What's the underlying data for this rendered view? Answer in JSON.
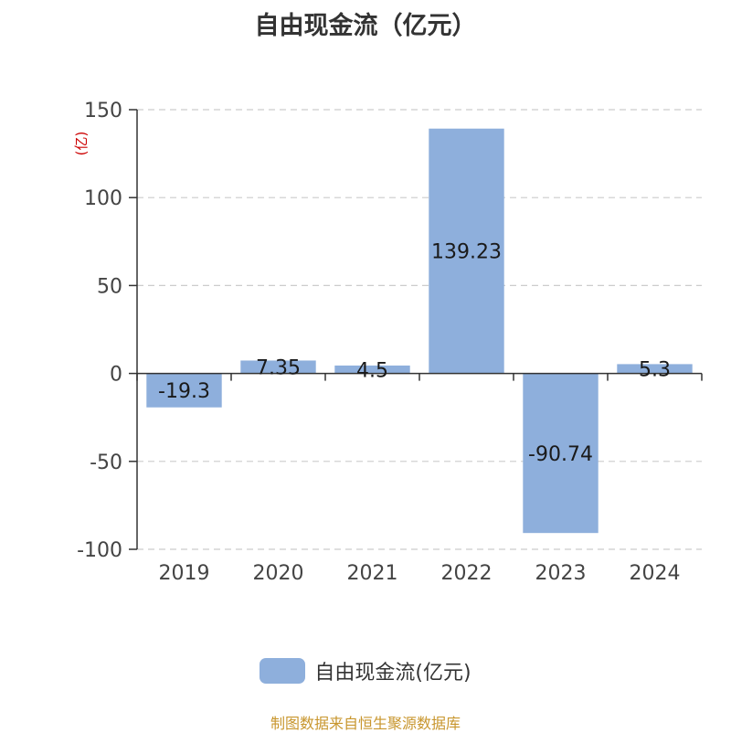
{
  "chart_data": {
    "type": "bar",
    "title": "自由现金流（亿元）",
    "unit_label": "(亿)",
    "categories": [
      "2019",
      "2020",
      "2021",
      "2022",
      "2023",
      "2024"
    ],
    "series": [
      {
        "name": "自由现金流(亿元)",
        "values": [
          -19.3,
          7.35,
          4.5,
          139.23,
          -90.74,
          5.3
        ],
        "data_labels": [
          "-19.3",
          "7.35",
          "4.5",
          "139.23",
          "-90.74",
          "5.3"
        ],
        "color": "#8eafdc"
      }
    ],
    "ylim": [
      -100,
      150
    ],
    "yticks": [
      150,
      100,
      50,
      0,
      -50,
      -100
    ],
    "grid": true,
    "legend_position": "bottom"
  },
  "source_note": "制图数据来自恒生聚源数据库",
  "colors": {
    "bar": "#8eafdc",
    "source_note": "#c8962e",
    "unit_label": "#cc0000",
    "grid": "#cccccc"
  }
}
